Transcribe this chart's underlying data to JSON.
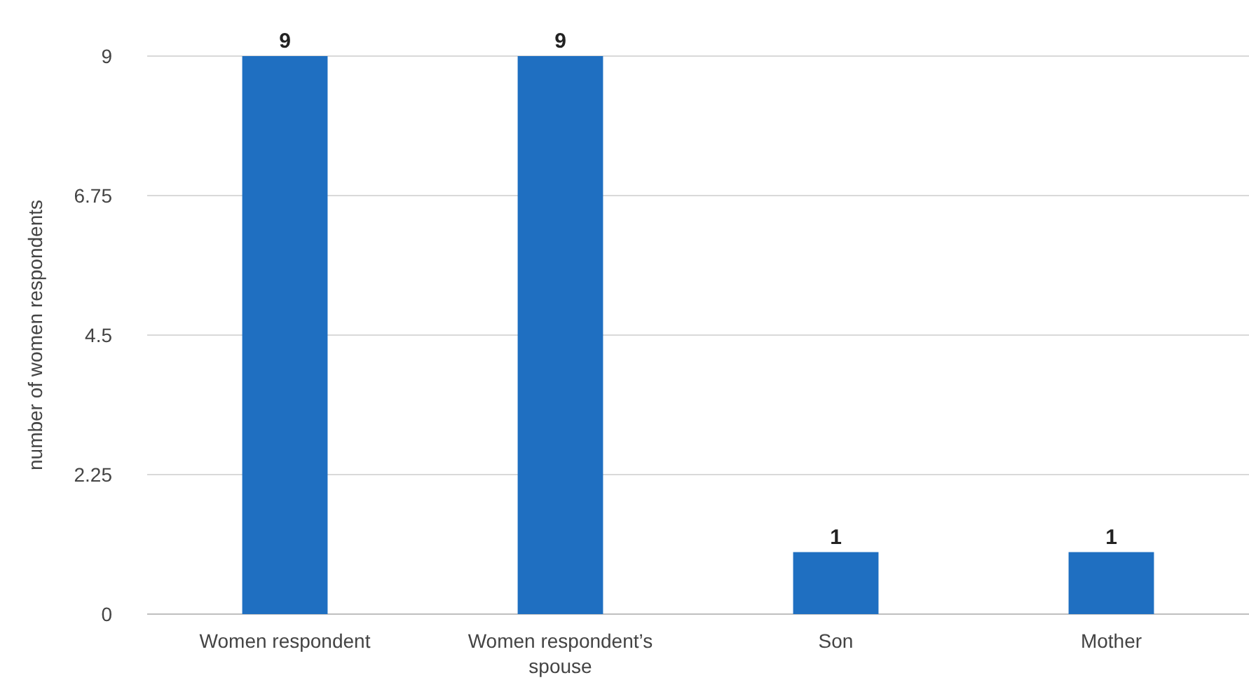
{
  "chart_data": {
    "type": "bar",
    "ylabel": "number of women respondents",
    "categories": [
      "Women respondent",
      "Women respondent’s spouse",
      "Son",
      "Mother"
    ],
    "values": [
      9,
      9,
      1,
      1
    ],
    "color": "#1f6fc1",
    "ylim": [
      0,
      9
    ],
    "yticks": [
      0,
      2.25,
      4.5,
      6.75,
      9
    ],
    "grid": "y",
    "data_labels": true
  }
}
